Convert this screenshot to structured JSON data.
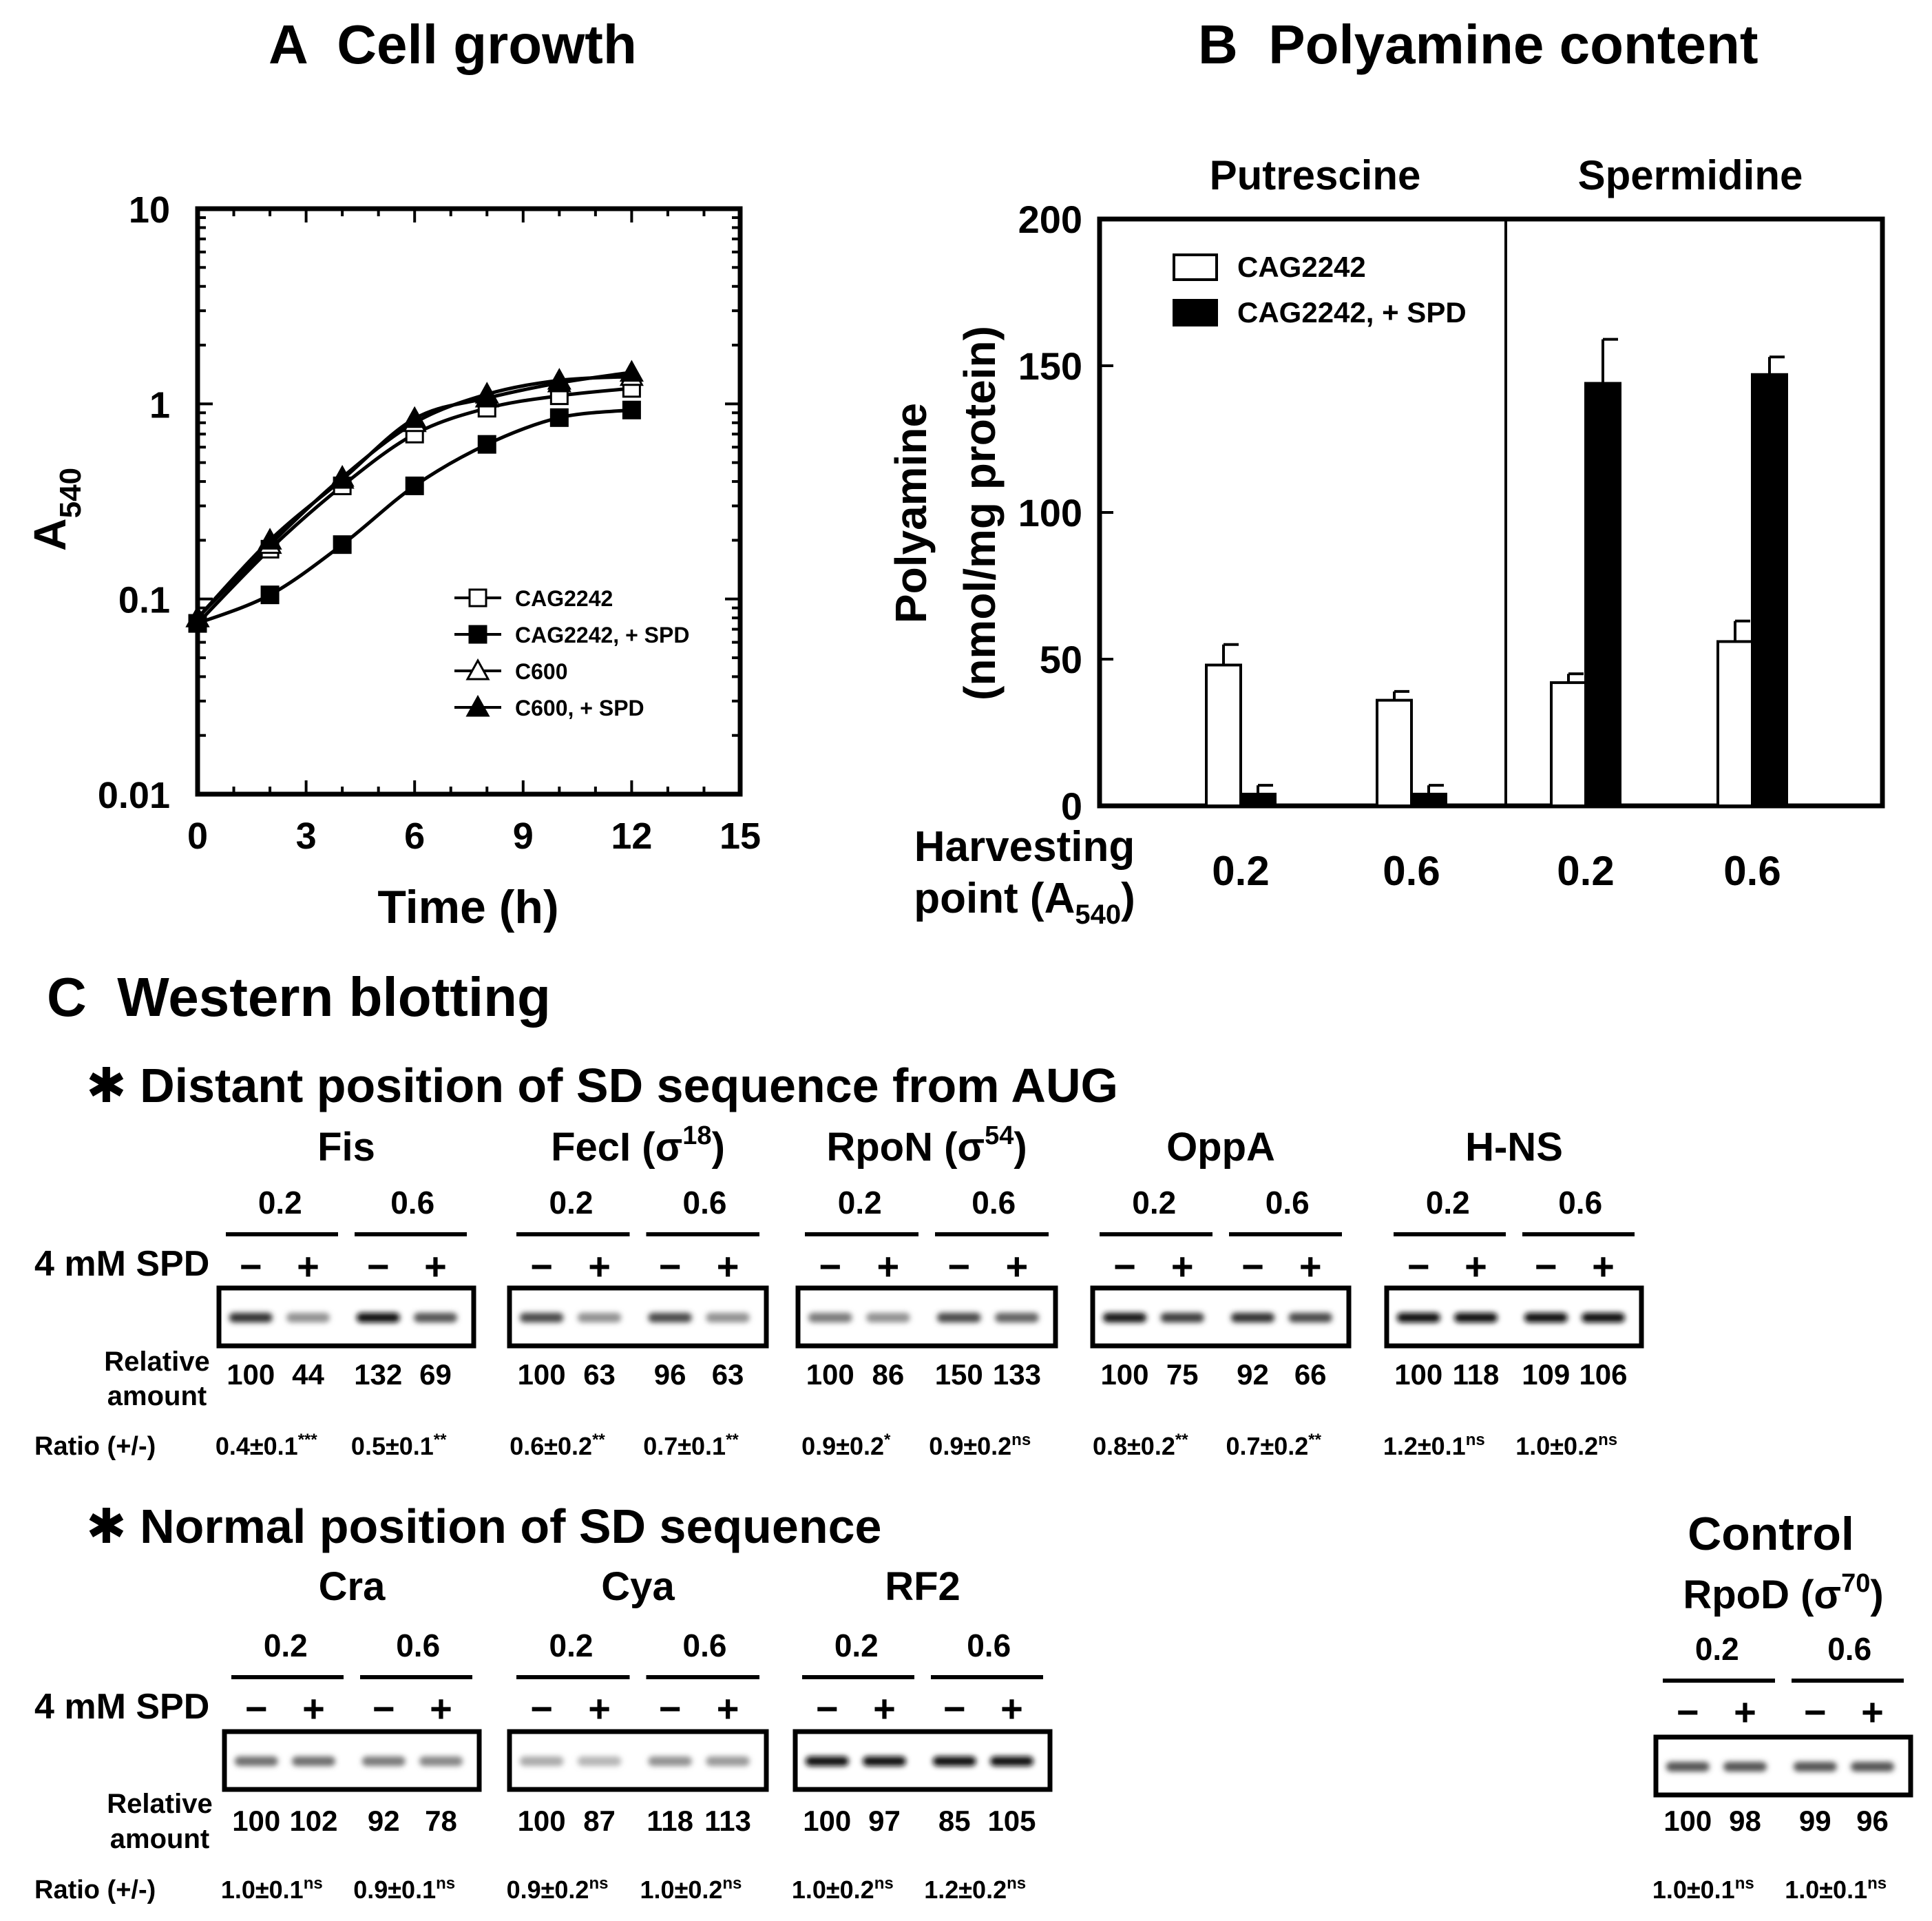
{
  "panelA": {
    "title": "A  Cell growth",
    "ylabel": "A",
    "ylabel_sub": "540",
    "xlabel": "Time (h)",
    "xticks": [
      "0",
      "3",
      "6",
      "9",
      "12",
      "15"
    ],
    "yticks": [
      "0.01",
      "0.1",
      "1",
      "10"
    ]
  },
  "panelB": {
    "title": "B  Polyamine content",
    "group1": "Putrescine",
    "group2": "Spermidine",
    "ylabel1": "Polyamine",
    "ylabel2": "(nmol/mg protein)",
    "harvest1": "Harvesting",
    "harvest2": "point (A",
    "harvest_sub": "540",
    "harvest_close": ")",
    "yticks": [
      "0",
      "50",
      "100",
      "150",
      "200"
    ]
  },
  "chart_data": [
    {
      "type": "line",
      "title": "A  Cell growth",
      "xlabel": "Time (h)",
      "ylabel": "A540",
      "xlim": [
        0,
        15
      ],
      "ylim": [
        0.01,
        10
      ],
      "yscale": "log",
      "legend_position": "bottom-right",
      "series": [
        {
          "name": "CAG2242",
          "marker": "open-square",
          "x": [
            0,
            2,
            4,
            6,
            8,
            10,
            12
          ],
          "y": [
            0.075,
            0.18,
            0.38,
            0.7,
            0.95,
            1.1,
            1.2
          ]
        },
        {
          "name": "CAG2242, + SPD",
          "marker": "filled-square",
          "x": [
            0,
            2,
            4,
            6,
            8,
            10,
            12
          ],
          "y": [
            0.075,
            0.105,
            0.19,
            0.38,
            0.62,
            0.85,
            0.93
          ]
        },
        {
          "name": "C600",
          "marker": "open-triangle",
          "x": [
            0,
            2,
            4,
            6,
            8,
            10,
            12
          ],
          "y": [
            0.08,
            0.19,
            0.42,
            0.8,
            1.12,
            1.32,
            1.38
          ]
        },
        {
          "name": "C600, + SPD",
          "marker": "filled-triangle",
          "x": [
            0,
            2,
            4,
            6,
            8,
            10,
            12
          ],
          "y": [
            0.08,
            0.2,
            0.41,
            0.84,
            1.07,
            1.28,
            1.45
          ]
        }
      ]
    },
    {
      "type": "bar",
      "title": "B  Polyamine content",
      "xlabel": "Harvesting point (A540)",
      "ylabel": "Polyamine (nmol/mg protein)",
      "ylim": [
        0,
        200
      ],
      "groups": [
        "Putrescine",
        "Spermidine"
      ],
      "categories": [
        "0.2",
        "0.6",
        "0.2",
        "0.6"
      ],
      "legend_position": "top-left",
      "series": [
        {
          "name": "CAG2242",
          "color": "#ffffff",
          "values": [
            48,
            36,
            42,
            56
          ],
          "errors": [
            7,
            3,
            3,
            7
          ]
        },
        {
          "name": "CAG2242, + SPD",
          "color": "#000000",
          "values": [
            4,
            4,
            144,
            147
          ],
          "errors": [
            3,
            3,
            15,
            6
          ]
        }
      ]
    }
  ],
  "panelC": {
    "title": "C  Western blotting",
    "section1": "✱ Distant position of SD sequence from AUG",
    "section2": "✱ Normal position of SD sequence",
    "spd_label": "4 mM SPD",
    "rel_label1": "Relative",
    "rel_label2": "amount",
    "ratio_label": "Ratio (+/-)",
    "control_title": "Control",
    "blots_top": [
      {
        "name": "Fis",
        "sup": "",
        "after": "",
        "g1": "0.2",
        "g2": "0.6",
        "signs": [
          "−",
          "+",
          "−",
          "+"
        ],
        "amounts": [
          "100",
          "44",
          "132",
          "69"
        ],
        "ratio1": "0.4±0.1",
        "sig1": "***",
        "ratio2": "0.5±0.1",
        "sig2": "**"
      },
      {
        "name": "FecI (σ",
        "sup": "18",
        "after": ")",
        "g1": "0.2",
        "g2": "0.6",
        "signs": [
          "−",
          "+",
          "−",
          "+"
        ],
        "amounts": [
          "100",
          "63",
          "96",
          "63"
        ],
        "ratio1": "0.6±0.2",
        "sig1": "**",
        "ratio2": "0.7±0.1",
        "sig2": "**"
      },
      {
        "name": "RpoN (σ",
        "sup": "54",
        "after": ")",
        "g1": "0.2",
        "g2": "0.6",
        "signs": [
          "−",
          "+",
          "−",
          "+"
        ],
        "amounts": [
          "100",
          "86",
          "150",
          "133"
        ],
        "ratio1": "0.9±0.2",
        "sig1": "*",
        "ratio2": "0.9±0.2",
        "sig2": "ns"
      },
      {
        "name": "OppA",
        "sup": "",
        "after": "",
        "g1": "0.2",
        "g2": "0.6",
        "signs": [
          "−",
          "+",
          "−",
          "+"
        ],
        "amounts": [
          "100",
          "75",
          "92",
          "66"
        ],
        "ratio1": "0.8±0.2",
        "sig1": "**",
        "ratio2": "0.7±0.2",
        "sig2": "**"
      },
      {
        "name": "H-NS",
        "sup": "",
        "after": "",
        "g1": "0.2",
        "g2": "0.6",
        "signs": [
          "−",
          "+",
          "−",
          "+"
        ],
        "amounts": [
          "100",
          "118",
          "109",
          "106"
        ],
        "ratio1": "1.2±0.1",
        "sig1": "ns",
        "ratio2": "1.0±0.2",
        "sig2": "ns"
      }
    ],
    "blots_bottom": [
      {
        "name": "Cra",
        "sup": "",
        "after": "",
        "g1": "0.2",
        "g2": "0.6",
        "signs": [
          "−",
          "+",
          "−",
          "+"
        ],
        "amounts": [
          "100",
          "102",
          "92",
          "78"
        ],
        "ratio1": "1.0±0.1",
        "sig1": "ns",
        "ratio2": "0.9±0.1",
        "sig2": "ns"
      },
      {
        "name": "Cya",
        "sup": "",
        "after": "",
        "g1": "0.2",
        "g2": "0.6",
        "signs": [
          "−",
          "+",
          "−",
          "+"
        ],
        "amounts": [
          "100",
          "87",
          "118",
          "113"
        ],
        "ratio1": "0.9±0.2",
        "sig1": "ns",
        "ratio2": "1.0±0.2",
        "sig2": "ns"
      },
      {
        "name": "RF2",
        "sup": "",
        "after": "",
        "g1": "0.2",
        "g2": "0.6",
        "signs": [
          "−",
          "+",
          "−",
          "+"
        ],
        "amounts": [
          "100",
          "97",
          "85",
          "105"
        ],
        "ratio1": "1.0±0.2",
        "sig1": "ns",
        "ratio2": "1.2±0.2",
        "sig2": "ns"
      },
      {
        "name": "RpoD (σ",
        "sup": "70",
        "after": ")",
        "g1": "0.2",
        "g2": "0.6",
        "signs": [
          "−",
          "+",
          "−",
          "+"
        ],
        "amounts": [
          "100",
          "98",
          "99",
          "96"
        ],
        "ratio1": "1.0±0.1",
        "sig1": "ns",
        "ratio2": "1.0±0.1",
        "sig2": "ns"
      }
    ]
  }
}
